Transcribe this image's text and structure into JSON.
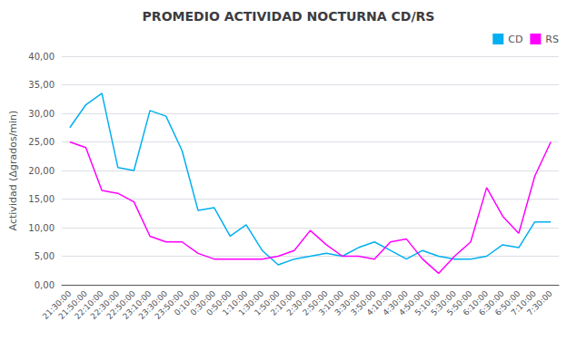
{
  "chart_data": {
    "type": "line",
    "title": "PROMEDIO ACTIVIDAD NOCTURNA CD/RS",
    "ylabel": "Actividad (Δgrados/min)",
    "categories": [
      "21:30:00",
      "21:50:00",
      "22:10:00",
      "22:30:00",
      "22:50:00",
      "23:10:00",
      "23:30:00",
      "23:50:00",
      "0:10:00",
      "0:30:00",
      "0:50:00",
      "1:10:00",
      "1:30:00",
      "1:50:00",
      "2:10:00",
      "2:30:00",
      "2:50:00",
      "3:10:00",
      "3:30:00",
      "3:50:00",
      "4:10:00",
      "4:30:00",
      "4:50:00",
      "5:10:00",
      "5:30:00",
      "5:50:00",
      "6:10:00",
      "6:30:00",
      "6:50:00",
      "7:10:00",
      "7:30:00"
    ],
    "series": [
      {
        "name": "CD",
        "color": "#00b0f0",
        "values": [
          27.5,
          31.5,
          33.5,
          20.5,
          20.0,
          30.5,
          29.5,
          23.5,
          13.0,
          13.5,
          8.5,
          10.5,
          6.0,
          3.5,
          4.5,
          5.0,
          5.5,
          5.0,
          6.5,
          7.5,
          6.0,
          4.5,
          6.0,
          5.0,
          4.5,
          4.5,
          5.0,
          7.0,
          6.5,
          11.0,
          11.0
        ]
      },
      {
        "name": "RS",
        "color": "#ff00ff",
        "values": [
          25.0,
          24.0,
          16.5,
          16.0,
          14.5,
          8.5,
          7.5,
          7.5,
          5.5,
          4.5,
          4.5,
          4.5,
          4.5,
          5.0,
          6.0,
          9.5,
          7.0,
          5.0,
          5.0,
          4.5,
          7.5,
          8.0,
          4.5,
          2.0,
          5.0,
          7.5,
          17.0,
          12.0,
          9.0,
          19.0,
          25.0
        ]
      }
    ],
    "ylim": [
      0,
      40
    ],
    "yticks": [
      {
        "value": 0,
        "label": "0,00"
      },
      {
        "value": 5,
        "label": "5,00"
      },
      {
        "value": 10,
        "label": "10,00"
      },
      {
        "value": 15,
        "label": "15,00"
      },
      {
        "value": 20,
        "label": "20,00"
      },
      {
        "value": 25,
        "label": "25,00"
      },
      {
        "value": 30,
        "label": "30,00"
      },
      {
        "value": 35,
        "label": "35,00"
      },
      {
        "value": 40,
        "label": "40,00"
      }
    ],
    "grid": true,
    "legend": "upper right"
  }
}
